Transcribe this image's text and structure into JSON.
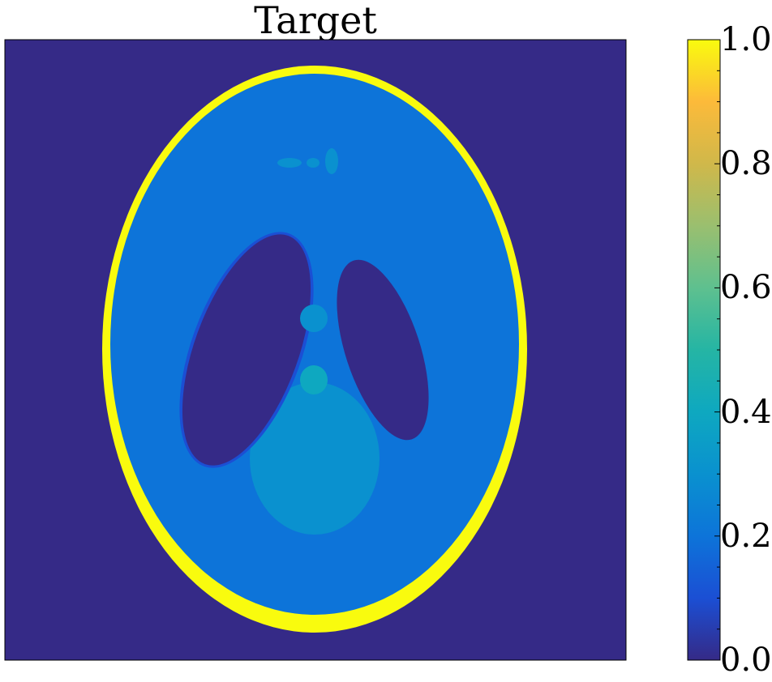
{
  "chart_data": {
    "type": "heatmap",
    "title": "Target",
    "xlabel": "",
    "ylabel": "",
    "axes_ticks_visible": false,
    "image_description_values": {
      "background": 0.0,
      "skull": 1.0,
      "brain": 0.2,
      "dark_ellipses": 0.0,
      "large_lower_region": 0.3,
      "small_features": 0.3,
      "left_dark_ellipse_edge": 0.1
    },
    "colorbar": {
      "colormap": "parula",
      "range": [
        0.0,
        1.0
      ],
      "ticks": [
        "0.0",
        "0.2",
        "0.4",
        "0.6",
        "0.8",
        "1.0"
      ],
      "tick_values": [
        0.0,
        0.2,
        0.4,
        0.6,
        0.8,
        1.0
      ],
      "placement": "right"
    },
    "colors": {
      "c0": "#352a87",
      "c01": "#1b4fd4",
      "c02": "#0d74d9",
      "c03": "#0a91cf",
      "c04": "#0ea8c0",
      "c06": "#5ec08f",
      "c08": "#d0b84a",
      "c09": "#fcba3a",
      "c10": "#f9fb0e"
    }
  }
}
